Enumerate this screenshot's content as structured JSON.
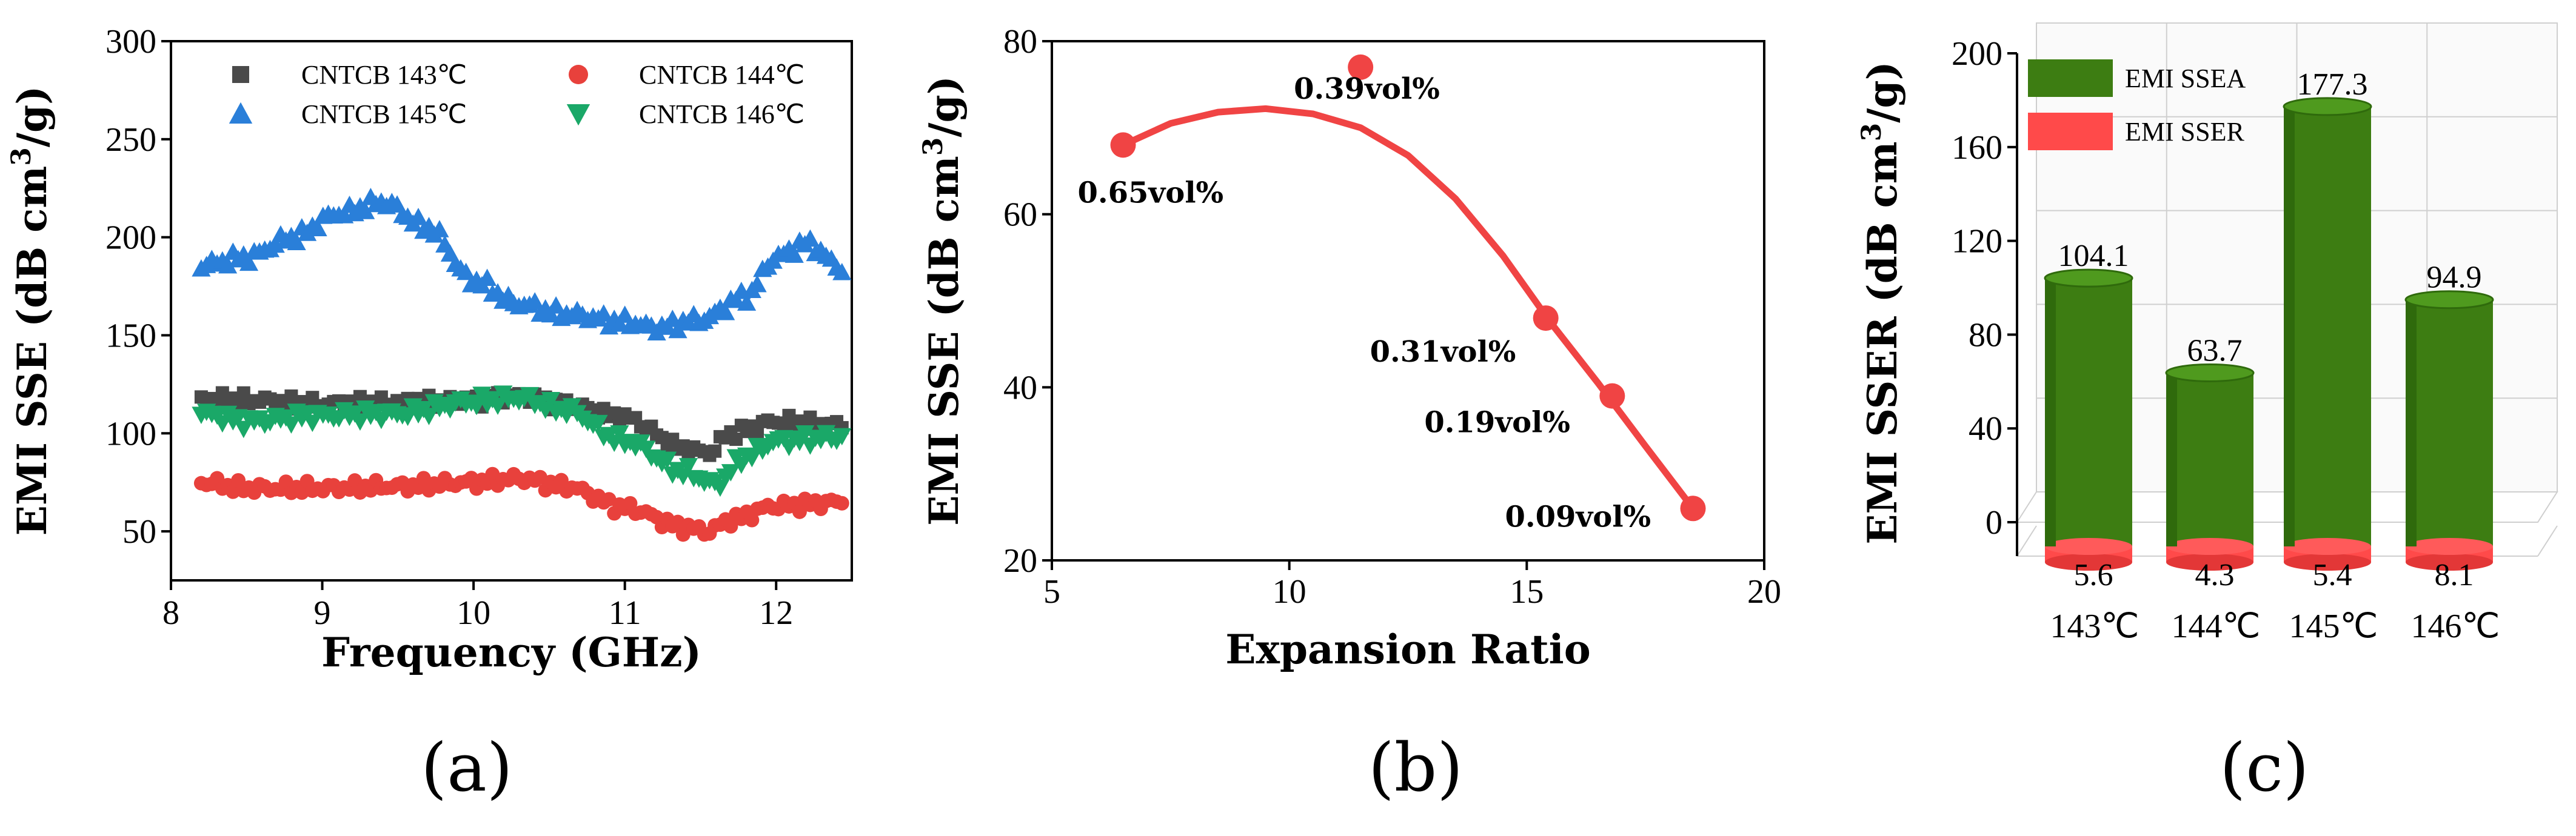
{
  "chart_data": [
    {
      "type": "scatter",
      "panel_label": "(a)",
      "panel_letter": "a",
      "xlabel": "Frequency (GHz)",
      "ylabel": "EMI SSE (dB cm3/g)",
      "ylabel_parts": [
        "EMI SSE (dB cm",
        "3",
        "/g)"
      ],
      "xlim": [
        8,
        12.5
      ],
      "ylim": [
        25,
        300
      ],
      "xticks": [
        8,
        9,
        10,
        11,
        12
      ],
      "yticks": [
        50,
        100,
        150,
        200,
        250,
        300
      ],
      "legend": {
        "position": "top",
        "columns": 2
      },
      "series": [
        {
          "name": "CNTCB 143℃",
          "marker": "square",
          "color": "#4a4a4a",
          "x": [
            8.2,
            8.5,
            9.0,
            9.5,
            10.0,
            10.3,
            10.6,
            11.0,
            11.4,
            11.55,
            11.7,
            12.0,
            12.45
          ],
          "y": [
            118,
            117,
            115,
            116,
            117,
            119,
            115,
            108,
            92,
            90,
            100,
            106,
            104
          ]
        },
        {
          "name": "CNTCB 144℃",
          "marker": "circle",
          "color": "#e8413c",
          "x": [
            8.2,
            8.5,
            9.0,
            9.5,
            10.0,
            10.3,
            10.6,
            11.0,
            11.4,
            11.55,
            11.7,
            12.0,
            12.45
          ],
          "y": [
            75,
            72,
            72,
            73,
            75,
            77,
            73,
            62,
            52,
            50,
            56,
            63,
            65
          ]
        },
        {
          "name": "CNTCB 145℃",
          "marker": "triangle-up",
          "color": "#2a7fd9",
          "x": [
            8.2,
            8.5,
            8.8,
            9.1,
            9.4,
            9.7,
            10.0,
            10.3,
            10.6,
            11.0,
            11.2,
            11.5,
            11.8,
            12.0,
            12.2,
            12.45
          ],
          "y": [
            186,
            190,
            200,
            212,
            218,
            205,
            178,
            166,
            161,
            157,
            154,
            158,
            170,
            190,
            197,
            184
          ]
        },
        {
          "name": "CNTCB 146℃",
          "marker": "triangle-down",
          "color": "#1aa868",
          "x": [
            8.2,
            8.5,
            9.0,
            9.5,
            10.0,
            10.3,
            10.6,
            11.0,
            11.4,
            11.6,
            11.8,
            12.0,
            12.45
          ],
          "y": [
            110,
            106,
            109,
            110,
            116,
            118,
            112,
            96,
            80,
            74,
            88,
            96,
            98
          ]
        }
      ]
    },
    {
      "type": "scatter",
      "panel_label": "(b)",
      "panel_letter": "b",
      "xlabel": "Expansion Ratio",
      "ylabel": "EMI SSE (dB cm3/g)",
      "ylabel_parts": [
        "EMI SSE (dB cm",
        "3",
        "/g)"
      ],
      "xlim": [
        5,
        20
      ],
      "ylim": [
        20,
        80
      ],
      "xticks": [
        5,
        10,
        15,
        20
      ],
      "yticks": [
        20,
        40,
        60,
        80
      ],
      "points": {
        "x": [
          6.5,
          11.5,
          15.4,
          16.8,
          18.5
        ],
        "y": [
          68,
          77,
          48,
          39,
          26
        ],
        "labels": [
          "0.65vol%",
          "0.39vol%",
          "0.31vol%",
          "0.19vol%",
          "0.09vol%"
        ]
      },
      "fit_curve": {
        "x": [
          6.5,
          7.5,
          8.5,
          9.5,
          10.5,
          11.5,
          12.5,
          13.5,
          14.5,
          15.5,
          16.5,
          17.5,
          18.5
        ],
        "y": [
          68,
          70.5,
          71.8,
          72.2,
          71.6,
          70,
          66.8,
          61.8,
          55.2,
          47.5,
          40.5,
          33.2,
          26
        ]
      },
      "color": "#f04444"
    },
    {
      "type": "bar",
      "panel_label": "(c)",
      "panel_letter": "c",
      "categories": [
        "143℃",
        "144℃",
        "145℃",
        "146℃"
      ],
      "series": [
        {
          "name": "EMI SSEA",
          "color": "#3d7d12",
          "values": [
            104.1,
            63.7,
            177.3,
            94.9
          ]
        },
        {
          "name": "EMI SSER",
          "color": "#ff4a4a",
          "values": [
            5.6,
            4.3,
            5.4,
            8.1
          ]
        }
      ],
      "value_labels_top": [
        "104.1",
        "63.7",
        "177.3",
        "94.9"
      ],
      "value_labels_bottom": [
        "5.6",
        "4.3",
        "5.4",
        "8.1"
      ],
      "ylabel": "EMI SSER (dB cm3/g)",
      "ylabel_parts": [
        "EMI SSER (dB cm",
        "3",
        "/g)"
      ],
      "ylim": [
        0,
        200
      ],
      "yticks": [
        0,
        40,
        80,
        120,
        160,
        200
      ],
      "legend": {
        "position": "top-left"
      }
    }
  ]
}
